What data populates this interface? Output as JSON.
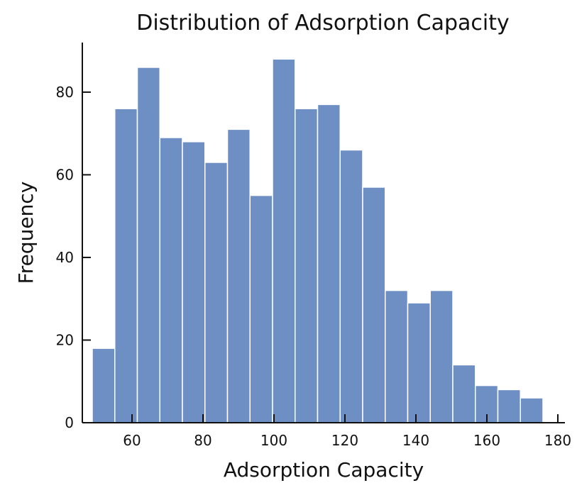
{
  "chart_data": {
    "type": "bar",
    "title": "Distribution of Adsorption Capacity",
    "xlabel": "Adsorption Capacity",
    "ylabel": "Frequency",
    "xlim": [
      46,
      182
    ],
    "ylim": [
      0,
      92
    ],
    "x_ticks": [
      60,
      80,
      100,
      120,
      140,
      160,
      180
    ],
    "y_ticks": [
      0,
      20,
      40,
      60,
      80
    ],
    "bin_width": 6.35,
    "bins": [
      {
        "x0": 48.8,
        "x1": 55.15,
        "value": 18
      },
      {
        "x0": 55.15,
        "x1": 61.5,
        "value": 76
      },
      {
        "x0": 61.5,
        "x1": 67.85,
        "value": 86
      },
      {
        "x0": 67.85,
        "x1": 74.2,
        "value": 69
      },
      {
        "x0": 74.2,
        "x1": 80.55,
        "value": 68
      },
      {
        "x0": 80.55,
        "x1": 86.9,
        "value": 63
      },
      {
        "x0": 86.9,
        "x1": 93.25,
        "value": 71
      },
      {
        "x0": 93.25,
        "x1": 99.6,
        "value": 55
      },
      {
        "x0": 99.6,
        "x1": 105.95,
        "value": 88
      },
      {
        "x0": 105.95,
        "x1": 112.3,
        "value": 76
      },
      {
        "x0": 112.3,
        "x1": 118.65,
        "value": 77
      },
      {
        "x0": 118.65,
        "x1": 125.0,
        "value": 66
      },
      {
        "x0": 125.0,
        "x1": 131.35,
        "value": 57
      },
      {
        "x0": 131.35,
        "x1": 137.7,
        "value": 32
      },
      {
        "x0": 137.7,
        "x1": 144.05,
        "value": 29
      },
      {
        "x0": 144.05,
        "x1": 150.4,
        "value": 32
      },
      {
        "x0": 150.4,
        "x1": 156.75,
        "value": 14
      },
      {
        "x0": 156.75,
        "x1": 163.1,
        "value": 9
      },
      {
        "x0": 163.1,
        "x1": 169.45,
        "value": 8
      },
      {
        "x0": 169.45,
        "x1": 175.8,
        "value": 6
      }
    ],
    "bar_color": "#6d8fc4",
    "bar_edge_color": "#ffffff",
    "grid": false,
    "legend": "none"
  }
}
